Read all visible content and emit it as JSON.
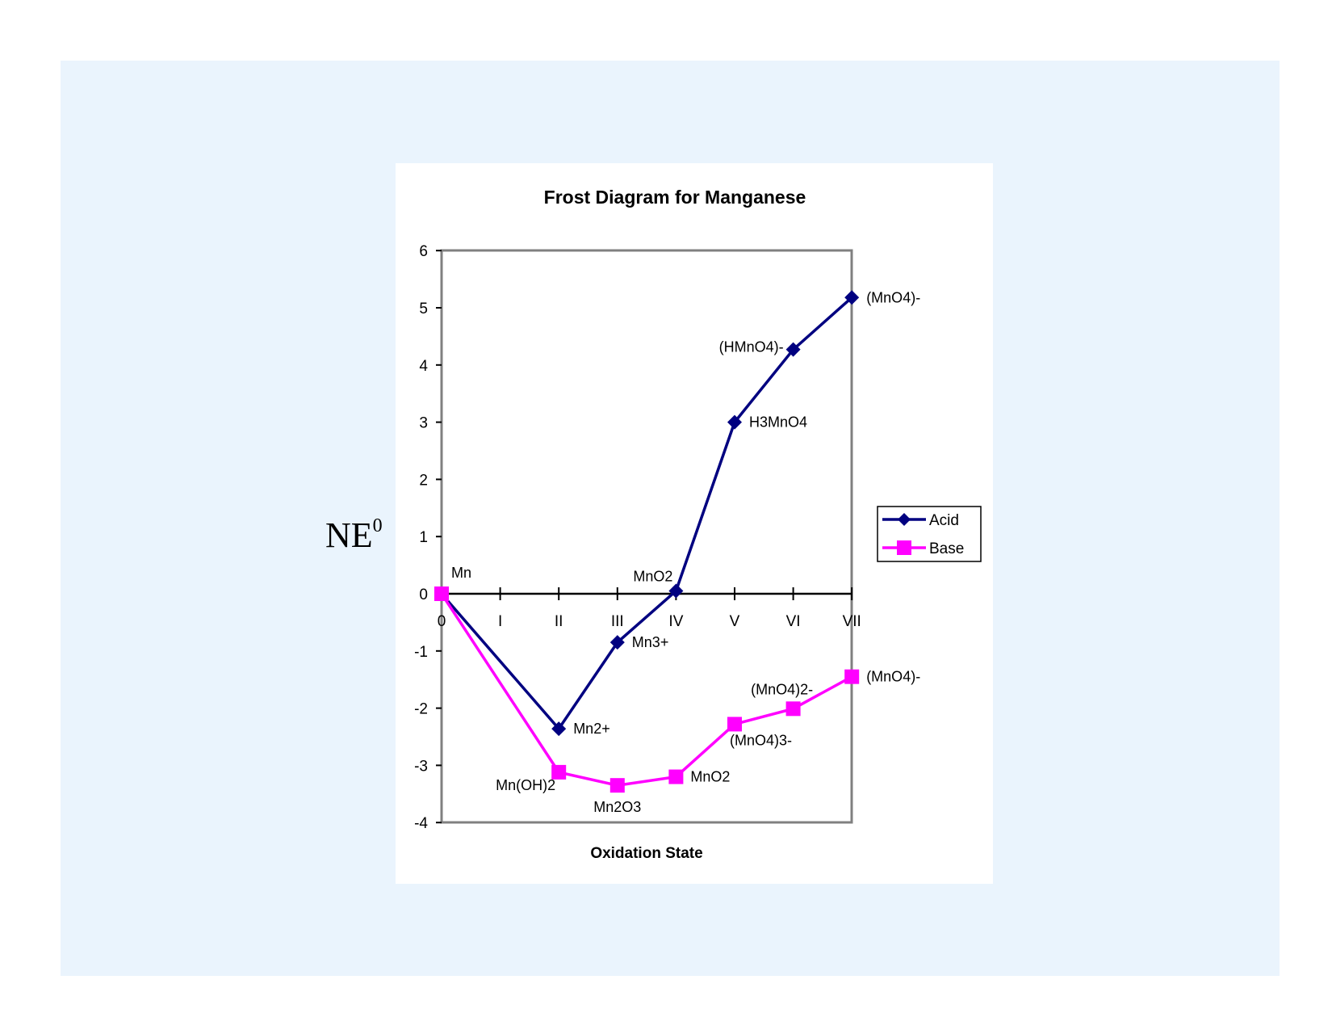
{
  "chart_data": {
    "type": "line",
    "title": "Frost Diagram for Manganese",
    "xlabel": "Oxidation State",
    "ylabel": "NE",
    "ylabel_sup": "0",
    "categories": [
      "0",
      "I",
      "II",
      "III",
      "IV",
      "V",
      "VI",
      "VII"
    ],
    "ylim": [
      -4,
      6
    ],
    "yticks": [
      6,
      5,
      4,
      3,
      2,
      1,
      0,
      -1,
      -2,
      -3,
      -4
    ],
    "legend_position": "right",
    "series": [
      {
        "name": "Acid",
        "color": "#000080",
        "marker": "diamond",
        "points": [
          {
            "x": 0,
            "y": 0,
            "label": "Mn"
          },
          {
            "x": 2,
            "y": -2.36,
            "label": "Mn2+"
          },
          {
            "x": 3,
            "y": -0.85,
            "label": "Mn3+"
          },
          {
            "x": 4,
            "y": 0.05,
            "label": "MnO2"
          },
          {
            "x": 5,
            "y": 3.0,
            "label": "H3MnO4"
          },
          {
            "x": 6,
            "y": 4.27,
            "label": "(HMnO4)-"
          },
          {
            "x": 7,
            "y": 5.18,
            "label": "(MnO4)-"
          }
        ]
      },
      {
        "name": "Base",
        "color": "#ff00ff",
        "marker": "square",
        "points": [
          {
            "x": 0,
            "y": 0,
            "label": ""
          },
          {
            "x": 2,
            "y": -3.12,
            "label": "Mn(OH)2"
          },
          {
            "x": 3,
            "y": -3.35,
            "label": "Mn2O3"
          },
          {
            "x": 4,
            "y": -3.2,
            "label": "MnO2"
          },
          {
            "x": 5,
            "y": -2.28,
            "label": "(MnO4)3-"
          },
          {
            "x": 6,
            "y": -2.01,
            "label": "(MnO4)2-"
          },
          {
            "x": 7,
            "y": -1.45,
            "label": "(MnO4)-"
          }
        ]
      }
    ]
  }
}
